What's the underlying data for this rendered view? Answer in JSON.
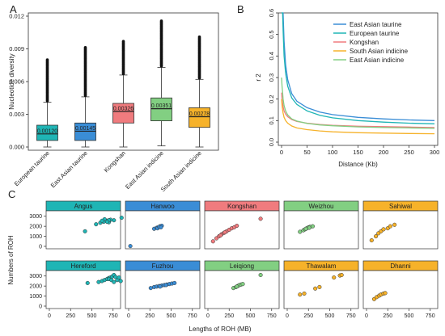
{
  "panels": {
    "a": {
      "letter": "A"
    },
    "b": {
      "letter": "B"
    },
    "c": {
      "letter": "C"
    }
  },
  "chart_data": [
    {
      "type": "box",
      "ylabel": "Nucleotide diversity",
      "ylim": [
        0,
        0.012
      ],
      "yticks": [
        "0.000",
        "0.003",
        "0.006",
        "0.009",
        "0.012"
      ],
      "ytick_values": [
        0,
        0.003,
        0.006,
        0.009,
        0.012
      ],
      "categories": [
        "European taurine",
        "East Asian taurine",
        "Kongshan",
        "East Asian indicine",
        "South Asian indicine"
      ],
      "series": [
        {
          "category": "European taurine",
          "q1": 0.0006,
          "median": 0.0012,
          "q3": 0.002,
          "lower_whisker": 0.0,
          "upper_whisker": 0.0041,
          "outlier_max": 0.008,
          "label": "0.00120",
          "color": "#1fb5b5"
        },
        {
          "category": "East Asian taurine",
          "q1": 0.0006,
          "median": 0.00145,
          "q3": 0.0022,
          "lower_whisker": 0.0,
          "upper_whisker": 0.0046,
          "outlier_max": 0.0092,
          "label": "0.00145",
          "color": "#3a8dd6"
        },
        {
          "category": "Kongshan",
          "q1": 0.0022,
          "median": 0.00326,
          "q3": 0.004,
          "lower_whisker": 0.0,
          "upper_whisker": 0.0066,
          "outlier_max": 0.0097,
          "label": "0.00326",
          "color": "#f07b7e"
        },
        {
          "category": "East Asian indicine",
          "q1": 0.0024,
          "median": 0.00351,
          "q3": 0.0045,
          "lower_whisker": 0.0001,
          "upper_whisker": 0.0073,
          "outlier_max": 0.0116,
          "label": "0.00351",
          "color": "#82cf82"
        },
        {
          "category": "South Asian indicine",
          "q1": 0.0018,
          "median": 0.00278,
          "q3": 0.0036,
          "lower_whisker": 0.0,
          "upper_whisker": 0.0062,
          "outlier_max": 0.0101,
          "label": "0.00278",
          "color": "#f6b22a"
        }
      ]
    },
    {
      "type": "line",
      "xlabel": "Distance (Kb)",
      "ylabel": "r 2",
      "xlim": [
        0,
        300
      ],
      "ylim": [
        0,
        0.6
      ],
      "xticks": [
        "0",
        "50",
        "100",
        "150",
        "200",
        "250",
        "300"
      ],
      "xtick_values": [
        0,
        50,
        100,
        150,
        200,
        250,
        300
      ],
      "yticks": [
        "0.0",
        "0.1",
        "0.2",
        "0.3",
        "0.4",
        "0.5",
        "0.6"
      ],
      "ytick_values": [
        0,
        0.1,
        0.2,
        0.3,
        0.4,
        0.5,
        0.6
      ],
      "legend_position": "top-right",
      "x": [
        0,
        1,
        2,
        3,
        5,
        8,
        12,
        20,
        30,
        50,
        75,
        100,
        150,
        200,
        250,
        300
      ],
      "series": [
        {
          "name": "East Asian taurine",
          "color": "#3a8dd6",
          "values": [
            0.6,
            0.6,
            0.6,
            0.6,
            0.47,
            0.36,
            0.29,
            0.225,
            0.19,
            0.16,
            0.14,
            0.128,
            0.115,
            0.108,
            0.103,
            0.1
          ]
        },
        {
          "name": "European taurine",
          "color": "#1fb5b5",
          "values": [
            0.6,
            0.6,
            0.6,
            0.52,
            0.4,
            0.32,
            0.26,
            0.205,
            0.175,
            0.145,
            0.125,
            0.113,
            0.1,
            0.093,
            0.088,
            0.085
          ]
        },
        {
          "name": "Kongshan",
          "color": "#f07b7e",
          "values": [
            0.23,
            0.2,
            0.18,
            0.165,
            0.145,
            0.13,
            0.118,
            0.105,
            0.096,
            0.088,
            0.082,
            0.078,
            0.074,
            0.072,
            0.07,
            0.068
          ]
        },
        {
          "name": "South Asian indicine",
          "color": "#f6b22a",
          "values": [
            0.2,
            0.17,
            0.15,
            0.135,
            0.115,
            0.1,
            0.088,
            0.075,
            0.066,
            0.058,
            0.052,
            0.048,
            0.044,
            0.042,
            0.04,
            0.039
          ]
        },
        {
          "name": "East Asian indicine",
          "color": "#82cf82",
          "values": [
            0.3,
            0.26,
            0.23,
            0.2,
            0.17,
            0.145,
            0.126,
            0.108,
            0.098,
            0.087,
            0.08,
            0.076,
            0.071,
            0.068,
            0.066,
            0.064
          ]
        }
      ]
    },
    {
      "type": "scatter",
      "xlabel": "Lengths of ROH (MB)",
      "ylabel": "Numbers of ROH",
      "xlim": [
        0,
        800
      ],
      "ylim": [
        0,
        3300
      ],
      "xticks": [
        "0",
        "250",
        "500",
        "750"
      ],
      "xtick_values": [
        0,
        250,
        500,
        750
      ],
      "yticks": [
        "0",
        "1000",
        "2000",
        "3000"
      ],
      "ytick_values": [
        0,
        1000,
        2000,
        3000
      ],
      "facets": [
        {
          "name": "Angus",
          "color": "#1fb5b5",
          "points": [
            [
              420,
              1500
            ],
            [
              550,
              2200
            ],
            [
              600,
              2350
            ],
            [
              640,
              2450
            ],
            [
              680,
              2550
            ],
            [
              700,
              2400
            ],
            [
              720,
              2650
            ],
            [
              650,
              2700
            ],
            [
              760,
              2600
            ],
            [
              850,
              2850
            ],
            [
              700,
              2600
            ],
            [
              680,
              2450
            ],
            [
              620,
              2550
            ]
          ]
        },
        {
          "name": "Hanwoo",
          "color": "#3a8dd6",
          "points": [
            [
              20,
              30
            ],
            [
              300,
              1750
            ],
            [
              330,
              1850
            ],
            [
              350,
              1900
            ],
            [
              370,
              2000
            ],
            [
              390,
              2050
            ],
            [
              340,
              1800
            ],
            [
              360,
              1950
            ],
            [
              380,
              1900
            ]
          ]
        },
        {
          "name": "Kongshan",
          "color": "#f07b7e",
          "points": [
            [
              60,
              500
            ],
            [
              100,
              800
            ],
            [
              130,
              1000
            ],
            [
              160,
              1200
            ],
            [
              190,
              1350
            ],
            [
              220,
              1500
            ],
            [
              250,
              1650
            ],
            [
              280,
              1800
            ],
            [
              310,
              1900
            ],
            [
              340,
              2050
            ],
            [
              200,
              1400
            ],
            [
              150,
              1100
            ],
            [
              620,
              2750
            ]
          ]
        },
        {
          "name": "Weizhou",
          "color": "#82cf82",
          "points": [
            [
              150,
              1450
            ],
            [
              190,
              1600
            ],
            [
              210,
              1700
            ],
            [
              230,
              1800
            ],
            [
              250,
              1900
            ],
            [
              270,
              1950
            ],
            [
              300,
              2000
            ],
            [
              220,
              1750
            ],
            [
              260,
              1850
            ]
          ]
        },
        {
          "name": "Sahiwal",
          "color": "#f6b22a",
          "points": [
            [
              60,
              600
            ],
            [
              110,
              1000
            ],
            [
              140,
              1300
            ],
            [
              170,
              1500
            ],
            [
              200,
              1700
            ],
            [
              250,
              1800
            ],
            [
              280,
              2000
            ],
            [
              330,
              2150
            ]
          ]
        },
        {
          "name": "Hereford",
          "color": "#1fb5b5",
          "points": [
            [
              450,
              2300
            ],
            [
              580,
              2400
            ],
            [
              620,
              2500
            ],
            [
              650,
              2600
            ],
            [
              680,
              2700
            ],
            [
              700,
              2800
            ],
            [
              720,
              2850
            ],
            [
              740,
              2950
            ],
            [
              760,
              3100
            ],
            [
              780,
              2900
            ],
            [
              800,
              2600
            ],
            [
              820,
              2850
            ],
            [
              840,
              2500
            ],
            [
              700,
              2700
            ],
            [
              730,
              2600
            ],
            [
              760,
              2400
            ]
          ]
        },
        {
          "name": "Fuzhou",
          "color": "#3a8dd6",
          "points": [
            [
              260,
              1800
            ],
            [
              300,
              1900
            ],
            [
              330,
              1950
            ],
            [
              360,
              2000
            ],
            [
              390,
              2050
            ],
            [
              420,
              2100
            ],
            [
              450,
              2150
            ],
            [
              480,
              2200
            ],
            [
              510,
              2250
            ],
            [
              540,
              2300
            ],
            [
              370,
              1950
            ],
            [
              440,
              2100
            ]
          ]
        },
        {
          "name": "Leiqiong",
          "color": "#82cf82",
          "points": [
            [
              300,
              1800
            ],
            [
              330,
              1900
            ],
            [
              350,
              2000
            ],
            [
              370,
              2100
            ],
            [
              390,
              2150
            ],
            [
              410,
              2200
            ],
            [
              340,
              1950
            ],
            [
              620,
              3100
            ]
          ]
        },
        {
          "name": "Thawalam",
          "color": "#f6b22a",
          "points": [
            [
              150,
              1150
            ],
            [
              200,
              1250
            ],
            [
              330,
              1750
            ],
            [
              380,
              1900
            ],
            [
              550,
              2850
            ],
            [
              620,
              3050
            ],
            [
              640,
              3100
            ]
          ]
        },
        {
          "name": "Dhanni",
          "color": "#f6b22a",
          "points": [
            [
              90,
              700
            ],
            [
              120,
              900
            ],
            [
              150,
              1050
            ],
            [
              170,
              1150
            ],
            [
              200,
              1250
            ],
            [
              220,
              1300
            ]
          ]
        }
      ]
    }
  ]
}
